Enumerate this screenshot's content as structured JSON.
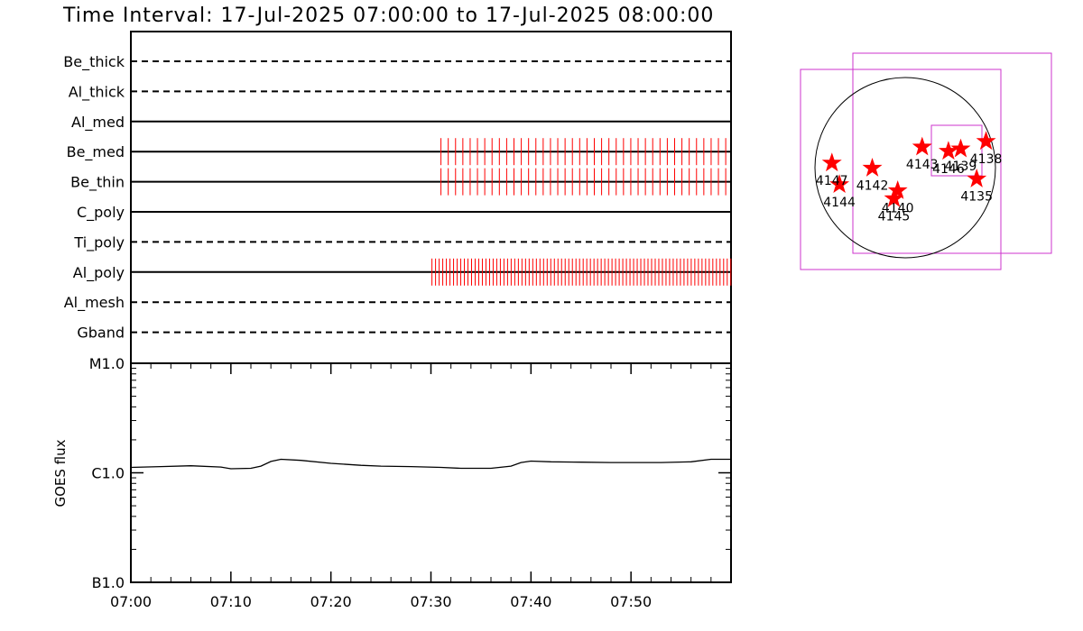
{
  "title": "Time Interval: 17-Jul-2025 07:00:00 to 17-Jul-2025 08:00:00",
  "colors": {
    "event": "#ff0000",
    "fov": "#cc33cc",
    "axis": "#000000",
    "background": "#ffffff"
  },
  "chart_data": [
    {
      "type": "timeline",
      "x": {
        "tick_labels": [
          "07:00",
          "07:10",
          "07:20",
          "07:30",
          "07:40",
          "07:50"
        ],
        "range_minutes": [
          0,
          60
        ]
      },
      "rows": [
        {
          "name": "Be_thick",
          "line": "dashed",
          "events_minutes": []
        },
        {
          "name": "Al_thick",
          "line": "dashed",
          "events_minutes": []
        },
        {
          "name": "Al_med",
          "line": "solid",
          "events_minutes": []
        },
        {
          "name": "Be_med",
          "line": "solid",
          "events_start": 31.0,
          "events_end": 60.0,
          "events_step": 0.73
        },
        {
          "name": "Be_thin",
          "line": "solid",
          "events_start": 31.0,
          "events_end": 60.0,
          "events_step": 0.73
        },
        {
          "name": "C_poly",
          "line": "solid",
          "events_minutes": []
        },
        {
          "name": "Ti_poly",
          "line": "dashed",
          "events_minutes": []
        },
        {
          "name": "Al_poly",
          "line": "solid",
          "events_start": 30.1,
          "events_end": 60.0,
          "events_step": 0.36
        },
        {
          "name": "Al_mesh",
          "line": "dashed",
          "events_minutes": []
        },
        {
          "name": "Gband",
          "line": "dashed",
          "events_minutes": []
        }
      ]
    },
    {
      "type": "line",
      "ylabel": "GOES flux",
      "yscale": "log",
      "ylim": [
        1e-07,
        1e-05
      ],
      "ytick_labels": [
        "B1.0",
        "C1.0",
        "M1.0"
      ],
      "xlim_minutes": [
        0,
        60
      ],
      "xtick_labels": [
        "07:00",
        "07:10",
        "07:20",
        "07:30",
        "07:40",
        "07:50"
      ],
      "series": [
        {
          "x_minutes": [
            0,
            3,
            6,
            9,
            10,
            12,
            13,
            14,
            15,
            17,
            20,
            23,
            25,
            28,
            31,
            33,
            36,
            38,
            39,
            40,
            42,
            45,
            48,
            50,
            53,
            56,
            58,
            60
          ],
          "flux": [
            1.12e-06,
            1.14e-06,
            1.16e-06,
            1.13e-06,
            1.09e-06,
            1.1e-06,
            1.15e-06,
            1.27e-06,
            1.33e-06,
            1.3e-06,
            1.22e-06,
            1.17e-06,
            1.15e-06,
            1.14e-06,
            1.12e-06,
            1.1e-06,
            1.1e-06,
            1.15e-06,
            1.24e-06,
            1.28e-06,
            1.26e-06,
            1.25e-06,
            1.24e-06,
            1.24e-06,
            1.24e-06,
            1.26e-06,
            1.33e-06,
            1.33e-06
          ]
        }
      ]
    },
    {
      "type": "scatter",
      "description_units": "heliocentric arcsec (solar disk radius ~960)",
      "points": [
        {
          "label": "4135",
          "x": 760,
          "y": -120
        },
        {
          "label": "4138",
          "x": 860,
          "y": 280
        },
        {
          "label": "4139",
          "x": 590,
          "y": 200
        },
        {
          "label": "4140",
          "x": -80,
          "y": -245
        },
        {
          "label": "4142",
          "x": -350,
          "y": -5
        },
        {
          "label": "4143",
          "x": 180,
          "y": 220
        },
        {
          "label": "4144",
          "x": -700,
          "y": -180
        },
        {
          "label": "4145",
          "x": -120,
          "y": -330
        },
        {
          "label": "4146",
          "x": 460,
          "y": 175
        },
        {
          "label": "4147",
          "x": -780,
          "y": 50
        }
      ],
      "point_labels_drawn": [
        "4135",
        "4138",
        "4139",
        "4140",
        "4142",
        "4143",
        "4144",
        "4145",
        "4146",
        "4147"
      ]
    }
  ]
}
